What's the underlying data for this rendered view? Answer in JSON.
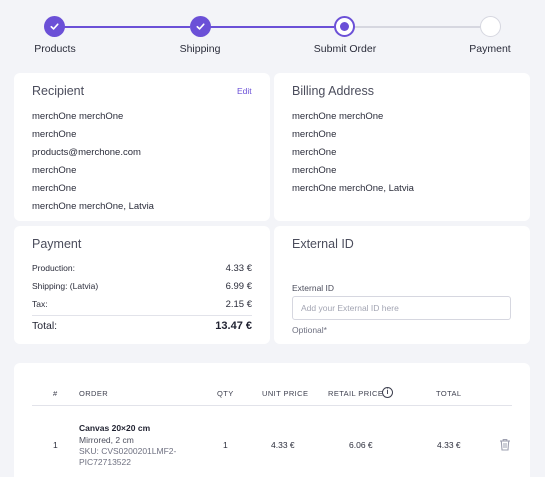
{
  "stepper": {
    "steps": [
      {
        "label": "Products",
        "state": "done"
      },
      {
        "label": "Shipping",
        "state": "done"
      },
      {
        "label": "Submit Order",
        "state": "current"
      },
      {
        "label": "Payment",
        "state": "todo"
      }
    ],
    "accent": "#6b50d7"
  },
  "recipient": {
    "title": "Recipient",
    "edit_label": "Edit",
    "lines": [
      "merchOne merchOne",
      "merchOne",
      "products@merchone.com",
      "merchOne",
      "merchOne",
      "merchOne merchOne, Latvia"
    ]
  },
  "billing": {
    "title": "Billing Address",
    "lines": [
      "merchOne merchOne",
      "merchOne",
      "merchOne",
      "merchOne",
      "merchOne merchOne, Latvia"
    ]
  },
  "payment": {
    "title": "Payment",
    "rows": [
      {
        "label": "Production:",
        "value": "4.33 €"
      },
      {
        "label": "Shipping: (Latvia)",
        "value": "6.99 €"
      },
      {
        "label": "Tax:",
        "value": "2.15 €"
      }
    ],
    "total_label": "Total:",
    "total_value": "13.47 €"
  },
  "external_id": {
    "title": "External ID",
    "field_label": "External ID",
    "placeholder": "Add your External ID here",
    "value": "",
    "hint": "Optional*"
  },
  "table": {
    "headers": {
      "num": "#",
      "order": "ORDER",
      "qty": "QTY",
      "unit_price": "UNIT PRICE",
      "retail_price": "RETAIL PRICE",
      "total": "TOTAL"
    },
    "rows": [
      {
        "num": "1",
        "name": "Canvas 20×20 cm",
        "variant": "Mirrored, 2 cm",
        "sku": "SKU: CVS0200201LMF2-PIC72713522",
        "qty": "1",
        "unit_price": "4.33 €",
        "retail_price": "6.06 €",
        "total": "4.33 €"
      }
    ]
  }
}
